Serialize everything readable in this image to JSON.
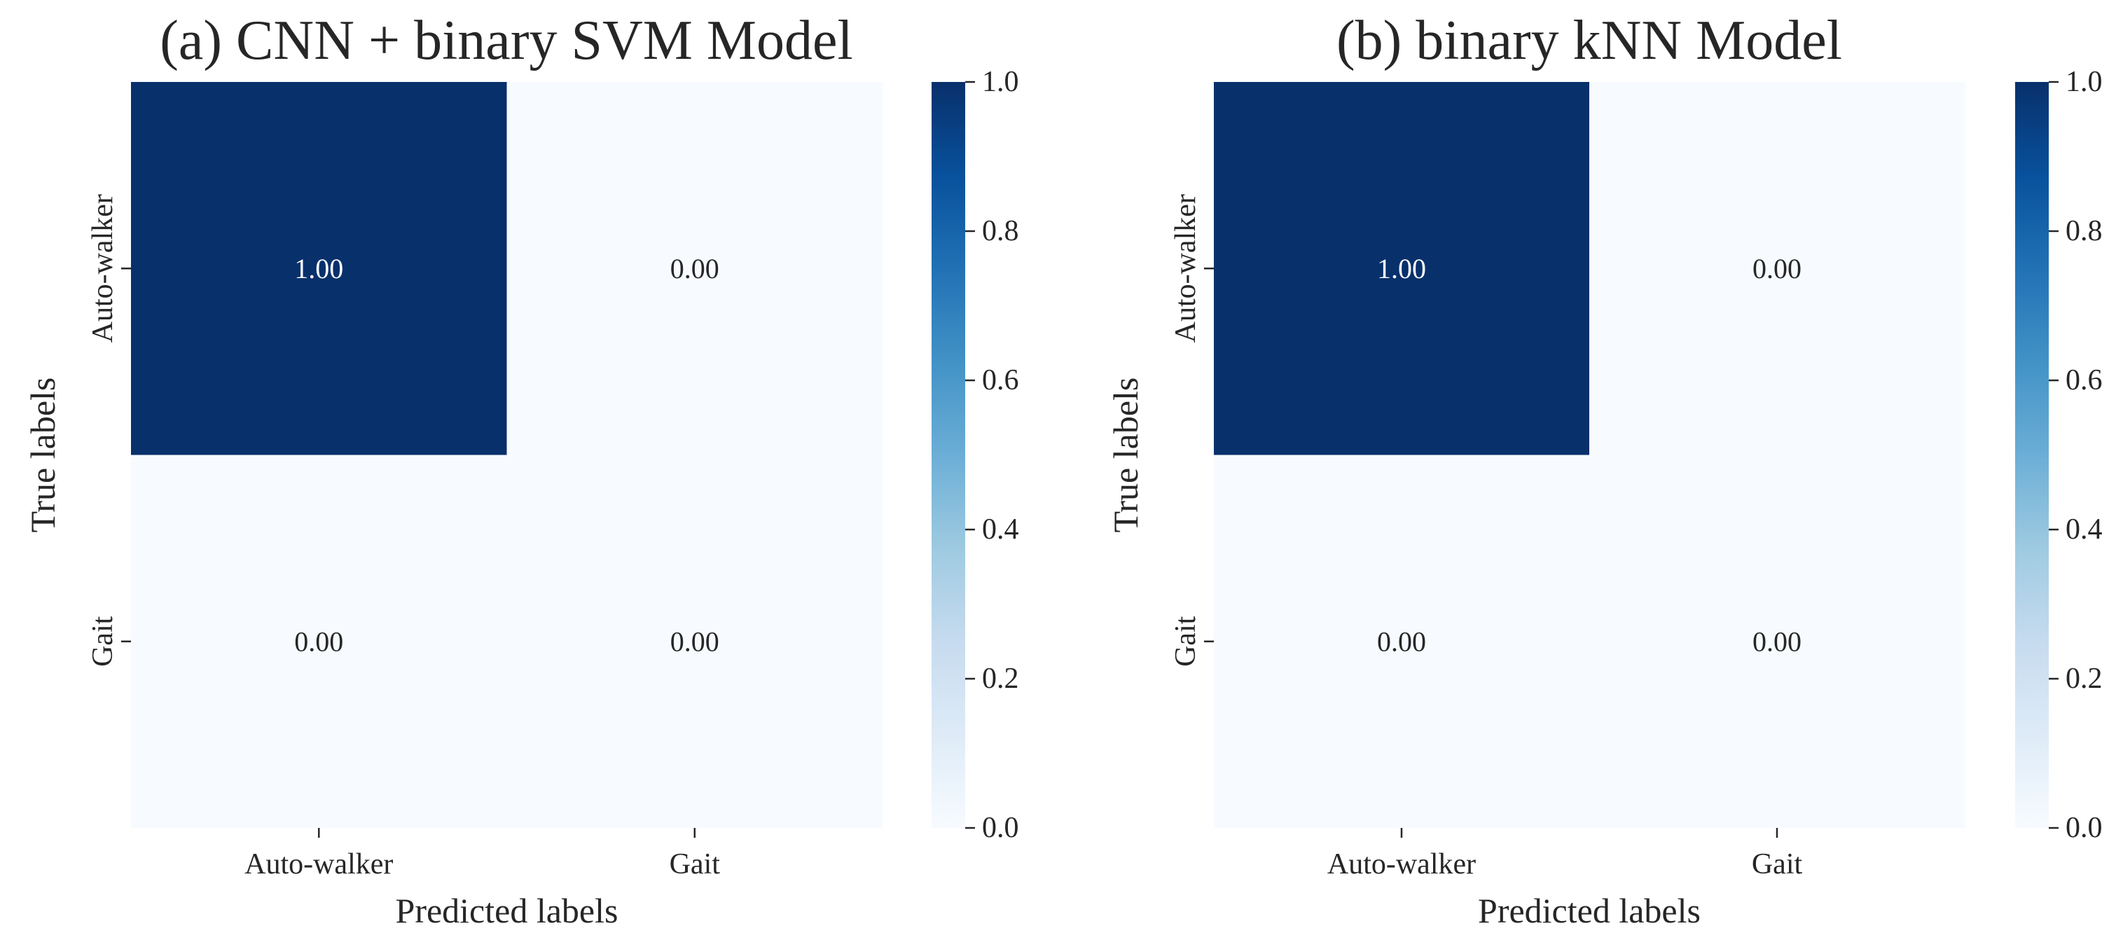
{
  "chart_data": [
    {
      "type": "heatmap",
      "title": "(a) CNN + binary SVM Model",
      "xlabel": "Predicted labels",
      "ylabel": "True labels",
      "x_categories": [
        "Auto-walker",
        "Gait"
      ],
      "y_categories": [
        "Auto-walker",
        "Gait"
      ],
      "values": [
        [
          1.0,
          0.0
        ],
        [
          0.0,
          0.0
        ]
      ],
      "value_format": "0.00",
      "colormap": "Blues",
      "colorbar": {
        "range": [
          0.0,
          1.0
        ],
        "ticks": [
          0.0,
          0.2,
          0.4,
          0.6,
          0.8,
          1.0
        ],
        "tick_labels": [
          "0.0",
          "0.2",
          "0.4",
          "0.6",
          "0.8",
          "1.0"
        ],
        "placement": "right"
      }
    },
    {
      "type": "heatmap",
      "title": "(b) binary kNN Model",
      "xlabel": "Predicted labels",
      "ylabel": "True labels",
      "x_categories": [
        "Auto-walker",
        "Gait"
      ],
      "y_categories": [
        "Auto-walker",
        "Gait"
      ],
      "values": [
        [
          1.0,
          0.0
        ],
        [
          0.0,
          0.0
        ]
      ],
      "value_format": "0.00",
      "colormap": "Blues",
      "colorbar": {
        "range": [
          0.0,
          1.0
        ],
        "ticks": [
          0.0,
          0.2,
          0.4,
          0.6,
          0.8,
          1.0
        ],
        "tick_labels": [
          "0.0",
          "0.2",
          "0.4",
          "0.6",
          "0.8",
          "1.0"
        ],
        "placement": "right"
      }
    }
  ],
  "colors": {
    "colormap_stops": [
      "#f7fbff",
      "#deebf7",
      "#c6dbef",
      "#9ecae1",
      "#6baed6",
      "#4292c6",
      "#2171b5",
      "#08519c",
      "#08306b"
    ],
    "text_dark": "#262626",
    "text_light": "#ffffff"
  }
}
